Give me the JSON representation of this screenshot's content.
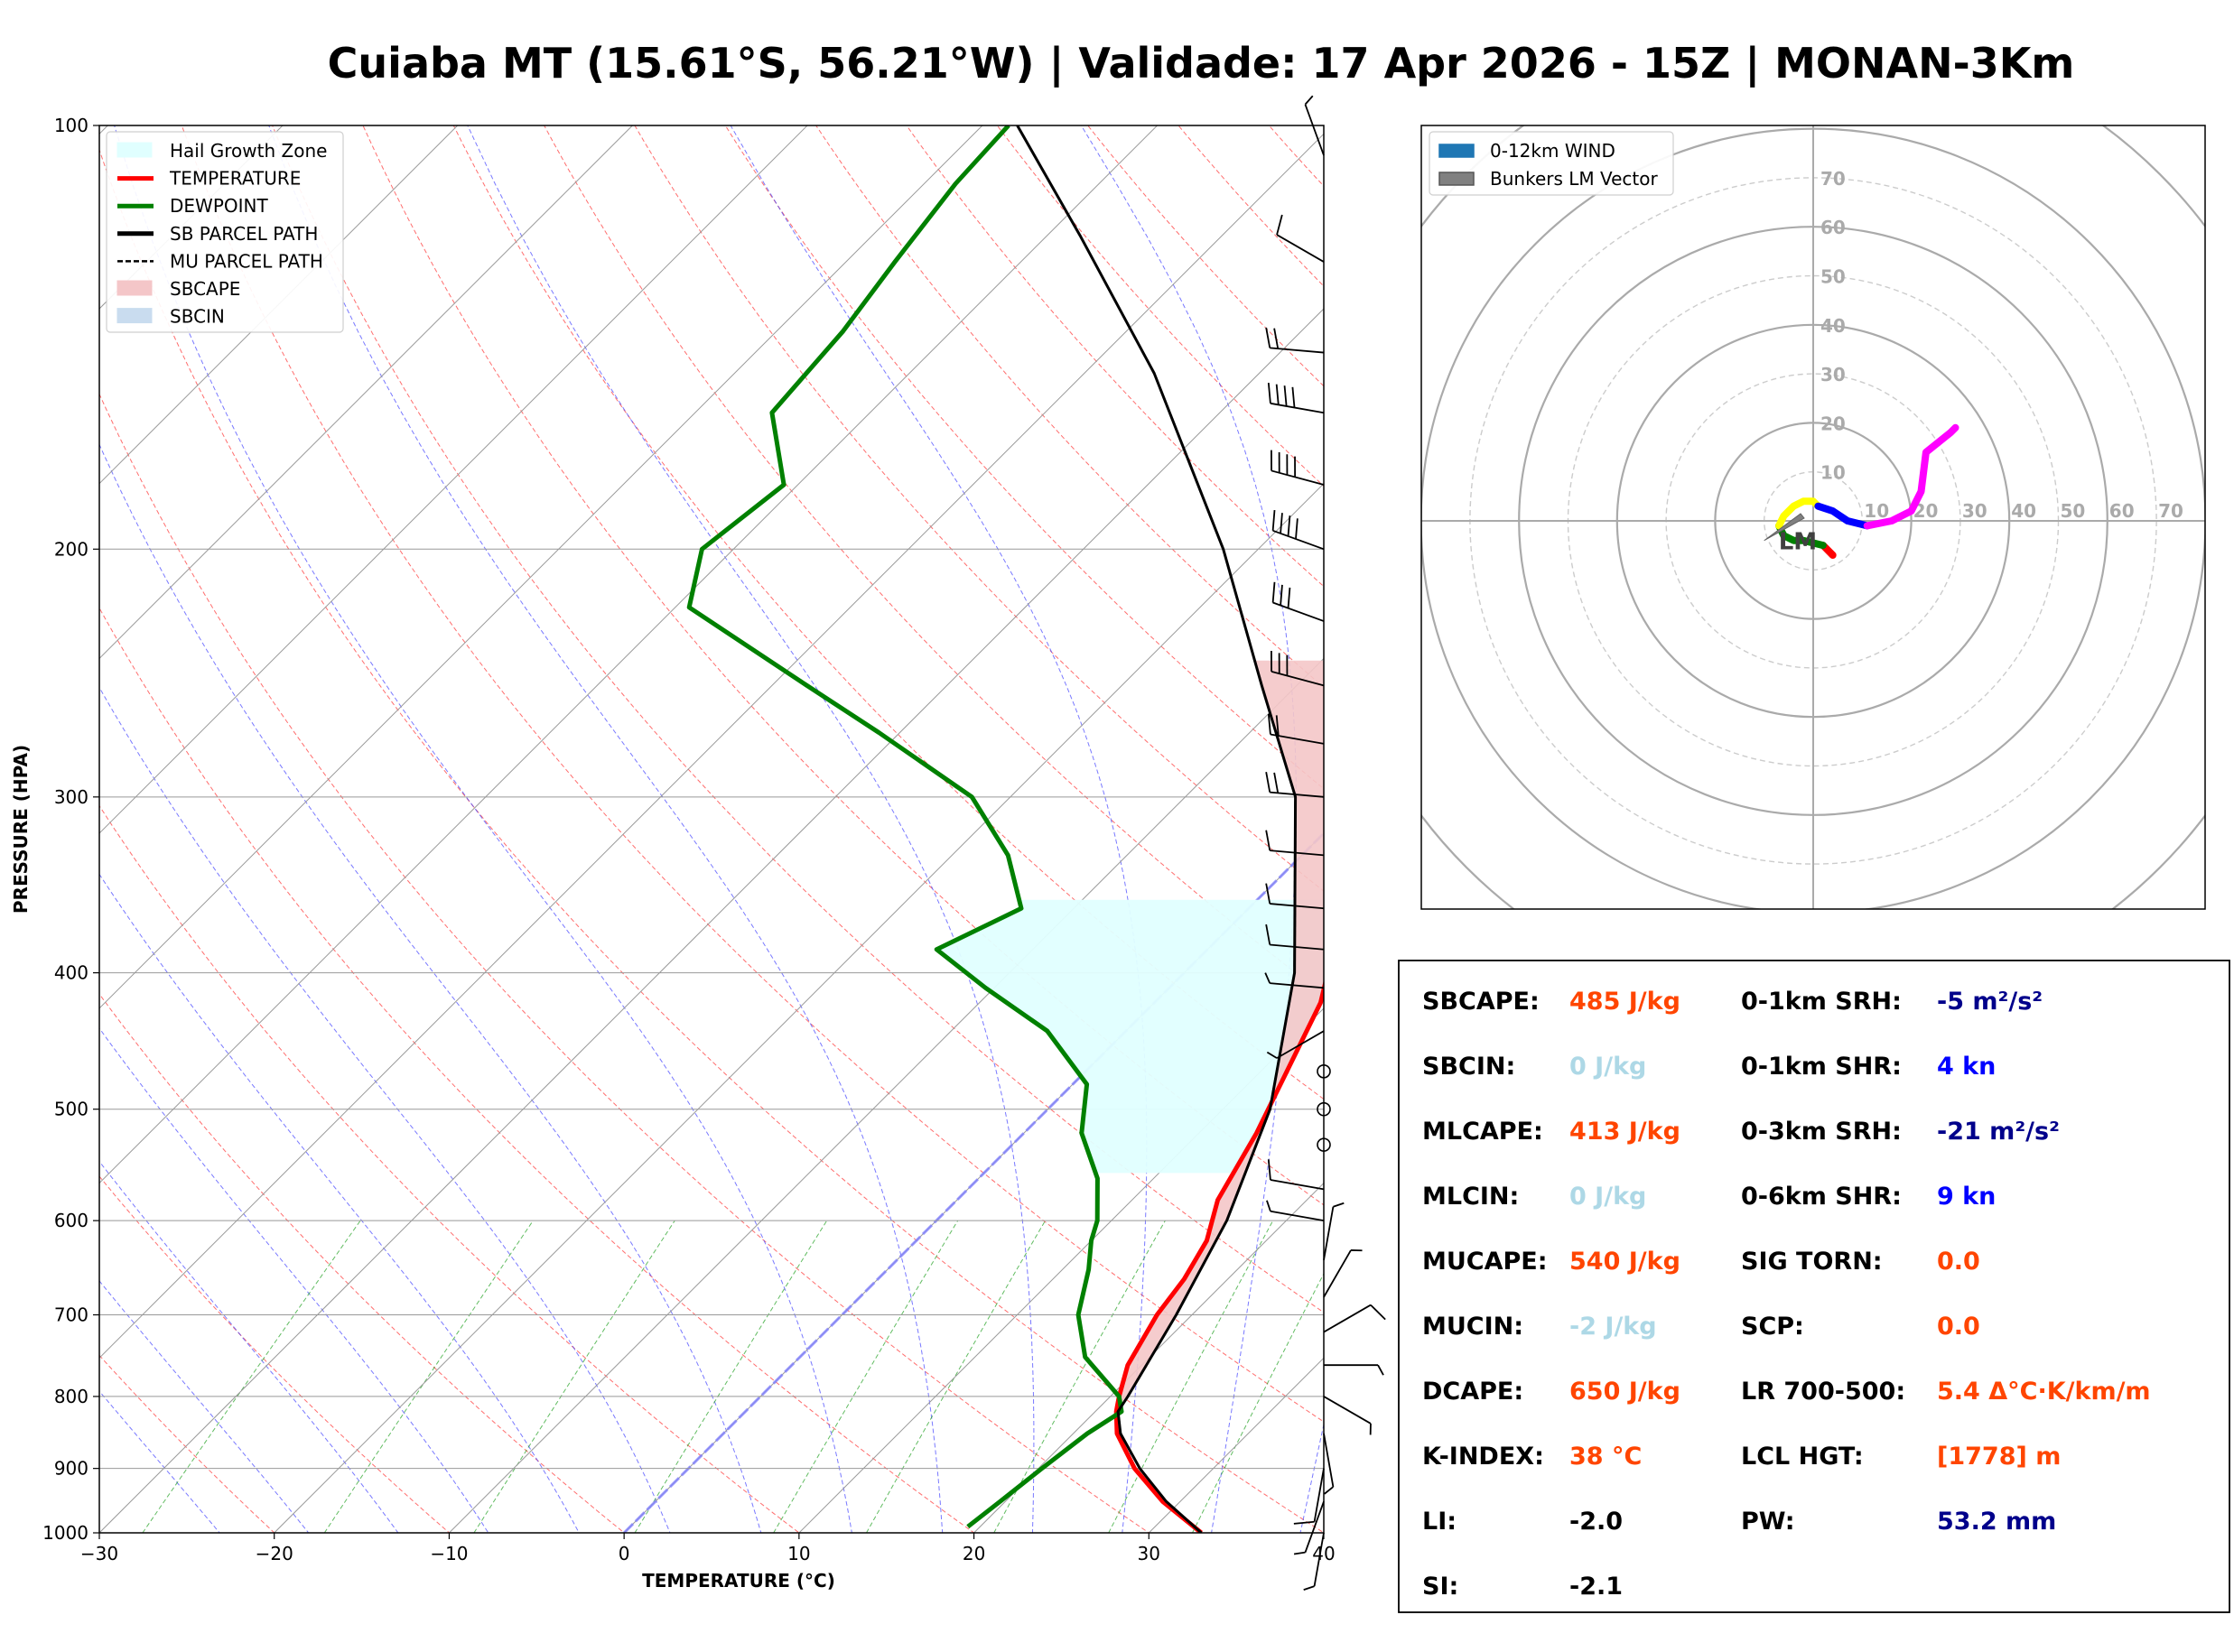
{
  "title": "Cuiaba MT (15.61°S, 56.21°W) | Validade: 17 Apr 2026 - 15Z | MONAN-3Km",
  "chart_data": [
    {
      "type": "skew-t",
      "xlabel": "TEMPERATURE (°C)",
      "ylabel": "PRESSURE (HPA)",
      "xlim": [
        -30,
        40
      ],
      "ylim": [
        1000,
        100
      ],
      "x_ticks": [
        -30,
        -20,
        -10,
        0,
        10,
        20,
        30,
        40
      ],
      "x_tick_labels": [
        "−30",
        "−20",
        "−10",
        "0",
        "10",
        "20",
        "30",
        "40"
      ],
      "pressure_ticks": [
        1000,
        900,
        800,
        700,
        600,
        500,
        400,
        300,
        200,
        100
      ],
      "legend": [
        {
          "label": "Hail Growth Zone",
          "color": "#e0ffff",
          "style": "fill"
        },
        {
          "label": "TEMPERATURE",
          "color": "#ff0000",
          "style": "line"
        },
        {
          "label": "DEWPOINT",
          "color": "#008000",
          "style": "line"
        },
        {
          "label": "SB PARCEL PATH",
          "color": "#000000",
          "style": "line"
        },
        {
          "label": "MU PARCEL PATH",
          "color": "#000000",
          "style": "dash"
        },
        {
          "label": "SBCAPE",
          "color": "#f4c6c8",
          "style": "fill"
        },
        {
          "label": "SBCIN",
          "color": "#c9dcef",
          "style": "fill"
        }
      ],
      "legend_position": "top-left",
      "series": [
        {
          "name": "TEMPERATURE",
          "color": "#ff0000",
          "points": [
            [
              1000,
              33
            ],
            [
              950,
              29
            ],
            [
              900,
              25.5
            ],
            [
              850,
              22.5
            ],
            [
              820,
              21.2
            ],
            [
              800,
              20.5
            ],
            [
              760,
              19.2
            ],
            [
              700,
              18
            ],
            [
              660,
              17.5
            ],
            [
              620,
              16.6
            ],
            [
              580,
              14.9
            ],
            [
              520,
              13.3
            ],
            [
              470,
              11.5
            ],
            [
              420,
              9.5
            ],
            [
              400,
              8.2
            ],
            [
              340,
              4
            ],
            [
              300,
              0.5
            ],
            [
              270,
              -2.6
            ],
            [
              240,
              -5.8
            ],
            [
              215,
              -8.5
            ],
            [
              200,
              -10.8
            ],
            [
              180,
              -13.8
            ],
            [
              160,
              -17.6
            ],
            [
              140,
              -22.2
            ],
            [
              120,
              -27.2
            ],
            [
              110,
              -30.8
            ],
            [
              100,
              -34.4
            ]
          ]
        },
        {
          "name": "DEWPOINT",
          "color": "#008000",
          "points": [
            [
              990,
              19.3
            ],
            [
              950,
              19.7
            ],
            [
              900,
              20.2
            ],
            [
              850,
              20.8
            ],
            [
              820,
              21.5
            ],
            [
              800,
              20.5
            ],
            [
              750,
              16.3
            ],
            [
              700,
              13.5
            ],
            [
              650,
              11.5
            ],
            [
              620,
              10
            ],
            [
              600,
              9.2
            ],
            [
              560,
              6.8
            ],
            [
              520,
              3.3
            ],
            [
              480,
              0.8
            ],
            [
              440,
              -4.5
            ],
            [
              410,
              -10.5
            ],
            [
              385,
              -15.5
            ],
            [
              360,
              -13
            ],
            [
              330,
              -16.8
            ],
            [
              300,
              -22.2
            ],
            [
              270,
              -31.2
            ],
            [
              250,
              -38
            ],
            [
              220,
              -49.2
            ],
            [
              200,
              -51.8
            ],
            [
              180,
              -50.8
            ],
            [
              160,
              -55.6
            ],
            [
              140,
              -56.2
            ],
            [
              125,
              -57.2
            ],
            [
              110,
              -58.2
            ],
            [
              100,
              -58.5
            ]
          ]
        },
        {
          "name": "SB PARCEL PATH",
          "color": "#000000",
          "points": [
            [
              1000,
              33
            ],
            [
              950,
              29.2
            ],
            [
              900,
              25.8
            ],
            [
              850,
              22.7
            ],
            [
              820,
              21.3
            ],
            [
              800,
              21
            ],
            [
              700,
              19.1
            ],
            [
              600,
              16.6
            ],
            [
              500,
              12.7
            ],
            [
              400,
              6.3
            ],
            [
              300,
              -3.7
            ],
            [
              250,
              -12
            ],
            [
              200,
              -22
            ],
            [
              150,
              -36
            ],
            [
              120,
              -48
            ],
            [
              100,
              -58
            ]
          ]
        },
        {
          "name": "MU PARCEL PATH",
          "color": "#000000",
          "dash": true,
          "points": [
            [
              1000,
              33
            ],
            [
              950,
              29.2
            ],
            [
              900,
              25.8
            ],
            [
              850,
              22.7
            ],
            [
              820,
              21.3
            ],
            [
              800,
              21
            ],
            [
              700,
              19.1
            ],
            [
              600,
              16.6
            ],
            [
              500,
              12.7
            ],
            [
              400,
              6.3
            ],
            [
              300,
              -3.7
            ],
            [
              250,
              -12
            ],
            [
              200,
              -22
            ],
            [
              150,
              -36
            ],
            [
              120,
              -48
            ],
            [
              100,
              -58
            ]
          ]
        }
      ],
      "wind_barbs": [
        {
          "p": 1000,
          "dir": 190,
          "kt": 5
        },
        {
          "p": 950,
          "dir": 200,
          "kt": 5
        },
        {
          "p": 900,
          "dir": 190,
          "kt": 10
        },
        {
          "p": 850,
          "dir": 170,
          "kt": 5
        },
        {
          "p": 800,
          "dir": 120,
          "kt": 5
        },
        {
          "p": 760,
          "dir": 90,
          "kt": 5
        },
        {
          "p": 720,
          "dir": 60,
          "kt": 10
        },
        {
          "p": 680,
          "dir": 30,
          "kt": 5
        },
        {
          "p": 640,
          "dir": 10,
          "kt": 5
        },
        {
          "p": 600,
          "dir": 280,
          "kt": 5
        },
        {
          "p": 570,
          "dir": 280,
          "kt": 10
        },
        {
          "p": 530,
          "dir": 0,
          "kt": 0
        },
        {
          "p": 500,
          "dir": 0,
          "kt": 0
        },
        {
          "p": 470,
          "dir": 0,
          "kt": 0
        },
        {
          "p": 440,
          "dir": 240,
          "kt": 5
        },
        {
          "p": 410,
          "dir": 275,
          "kt": 5
        },
        {
          "p": 385,
          "dir": 275,
          "kt": 10
        },
        {
          "p": 360,
          "dir": 275,
          "kt": 10
        },
        {
          "p": 330,
          "dir": 275,
          "kt": 10
        },
        {
          "p": 300,
          "dir": 275,
          "kt": 20
        },
        {
          "p": 275,
          "dir": 280,
          "kt": 20
        },
        {
          "p": 250,
          "dir": 285,
          "kt": 30
        },
        {
          "p": 225,
          "dir": 290,
          "kt": 30
        },
        {
          "p": 200,
          "dir": 290,
          "kt": 40
        },
        {
          "p": 180,
          "dir": 285,
          "kt": 40
        },
        {
          "p": 160,
          "dir": 280,
          "kt": 40
        },
        {
          "p": 145,
          "dir": 275,
          "kt": 20
        },
        {
          "p": 125,
          "dir": 300,
          "kt": 10
        },
        {
          "p": 105,
          "dir": 340,
          "kt": 5
        }
      ]
    },
    {
      "type": "hodograph",
      "legend": [
        {
          "label": "0-12km WIND",
          "color": "#1f77b4"
        },
        {
          "label": "Bunkers LM Vector",
          "color": "#808080"
        }
      ],
      "legend_position": "top-left",
      "ring_labels": [
        "10",
        "20",
        "30",
        "40",
        "50",
        "60",
        "70"
      ],
      "segments": [
        {
          "color": "#ff0000",
          "points": [
            [
              2,
              -5
            ],
            [
              4,
              -7
            ]
          ]
        },
        {
          "color": "#008000",
          "points": [
            [
              2,
              -5
            ],
            [
              -2,
              -4
            ],
            [
              -4,
              -4
            ],
            [
              -6,
              -3
            ],
            [
              -7,
              -1
            ]
          ]
        },
        {
          "color": "#ffff00",
          "points": [
            [
              -7,
              -1
            ],
            [
              -6,
              1
            ],
            [
              -4,
              3
            ],
            [
              -2,
              4
            ],
            [
              0,
              4
            ],
            [
              1,
              3
            ]
          ]
        },
        {
          "color": "#0000ff",
          "points": [
            [
              1,
              3
            ],
            [
              4,
              2
            ],
            [
              7,
              0
            ],
            [
              11,
              -1
            ]
          ]
        },
        {
          "color": "#ff00ff",
          "points": [
            [
              11,
              -1
            ],
            [
              16,
              0
            ],
            [
              20,
              2
            ],
            [
              22,
              6
            ],
            [
              23,
              14
            ],
            [
              28,
              18
            ],
            [
              29,
              19
            ]
          ]
        }
      ],
      "bunkers_lm": {
        "label": "LM",
        "u": -10,
        "v": -4
      }
    }
  ],
  "indices": [
    {
      "name": "SBCAPE:",
      "value": "485 J/kg",
      "color": "#ff4500"
    },
    {
      "name": "SBCIN:",
      "value": "0 J/kg",
      "color": "#add8e6"
    },
    {
      "name": "MLCAPE:",
      "value": "413 J/kg",
      "color": "#ff4500"
    },
    {
      "name": "MLCIN:",
      "value": "0 J/kg",
      "color": "#add8e6"
    },
    {
      "name": "MUCAPE:",
      "value": "540 J/kg",
      "color": "#ff4500"
    },
    {
      "name": "MUCIN:",
      "value": "-2 J/kg",
      "color": "#add8e6"
    },
    {
      "name": "DCAPE:",
      "value": "650 J/kg",
      "color": "#ff4500"
    },
    {
      "name": "K-INDEX:",
      "value": "38 °C",
      "color": "#ff4500"
    },
    {
      "name": "LI:",
      "value": "-2.0",
      "color": "#000000"
    },
    {
      "name": "SI:",
      "value": "-2.1",
      "color": "#000000"
    },
    {
      "name": "0-1km SRH:",
      "value": "-5 m²/s²",
      "color": "#00008b"
    },
    {
      "name": "0-1km SHR:",
      "value": "4 kn",
      "color": "#0000ff"
    },
    {
      "name": "0-3km SRH:",
      "value": "-21 m²/s²",
      "color": "#00008b"
    },
    {
      "name": "0-6km SHR:",
      "value": "9 kn",
      "color": "#0000ff"
    },
    {
      "name": "SIG TORN:",
      "value": "0.0",
      "color": "#ff4500"
    },
    {
      "name": "SCP:",
      "value": "0.0",
      "color": "#ff4500"
    },
    {
      "name": "LR 700-500:",
      "value": "5.4 Δ°C·K/km/m",
      "color": "#ff4500"
    },
    {
      "name": "LCL HGT:",
      "value": "[1778] m",
      "color": "#ff4500"
    },
    {
      "name": "PW:",
      "value": "53.2 mm",
      "color": "#00008b"
    }
  ]
}
